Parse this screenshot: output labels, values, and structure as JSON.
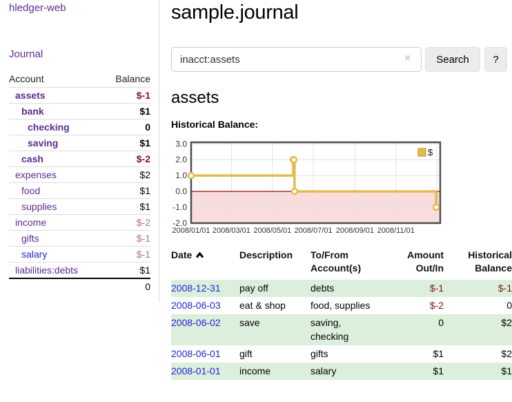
{
  "app": {
    "title": "hledger-web",
    "nav": {
      "journal": "Journal"
    }
  },
  "colors": {
    "accent_purple": "#5b2d91",
    "link_blue": "#2222dd",
    "negative_dark": "#801515",
    "negative_soft": "#b5716f",
    "row_green": "#dcefdc",
    "chart_gold": "#e3bc4a",
    "chart_negative_bg": "#f9dcdc",
    "zero_line_red": "#9b0000"
  },
  "sidebar": {
    "header": {
      "account": "Account",
      "balance": "Balance"
    },
    "accounts": [
      {
        "name": "assets",
        "balance": "$-1"
      },
      {
        "name": "bank",
        "balance": "$1"
      },
      {
        "name": "checking",
        "balance": "0"
      },
      {
        "name": "saving",
        "balance": "$1"
      },
      {
        "name": "cash",
        "balance": "$-2"
      },
      {
        "name": "expenses",
        "balance": "$2"
      },
      {
        "name": "food",
        "balance": "$1"
      },
      {
        "name": "supplies",
        "balance": "$1"
      },
      {
        "name": "income",
        "balance": "$-2"
      },
      {
        "name": "gifts",
        "balance": "$-1"
      },
      {
        "name": "salary",
        "balance": "$-1"
      },
      {
        "name": "liabilities:debts",
        "balance": "$1"
      }
    ],
    "total": "0"
  },
  "main": {
    "title": "sample.journal",
    "search": {
      "value": "inacct:assets",
      "clear_icon": "×",
      "search_button": "Search",
      "help_button": "?"
    },
    "account_heading": "assets",
    "chart_title": "Historical Balance:"
  },
  "chart_data": {
    "type": "line",
    "step": true,
    "title": "Historical Balance:",
    "series": [
      {
        "name": "$",
        "points": [
          [
            "2008-01-01",
            1
          ],
          [
            "2008-06-01",
            2
          ],
          [
            "2008-06-02",
            2
          ],
          [
            "2008-06-03",
            0
          ],
          [
            "2008-12-31",
            -1
          ]
        ]
      }
    ],
    "x_ticks": [
      "2008/01/01",
      "2008/03/01",
      "2008/05/01",
      "2008/07/01",
      "2008/09/01",
      "2008/11/01"
    ],
    "x_grid_extra": [
      "2009/01/01"
    ],
    "y_ticks": [
      3.0,
      2.0,
      1.0,
      0.0,
      -1.0,
      -2.0
    ],
    "ylim": [
      -2.0,
      3.1
    ],
    "xlim": [
      "2008-01-01",
      "2009-01-06"
    ],
    "grid": true,
    "legend": {
      "label": "$",
      "position": "top-right"
    },
    "line_color": "#e3bc4a",
    "negative_region_color": "#f9dcdc"
  },
  "register": {
    "headers": {
      "date": "Date",
      "description": "Description",
      "account": "To/From Account(s)",
      "amount": "Amount Out/In",
      "balance": "Historical Balance"
    },
    "rows": [
      {
        "date": "2008-12-31",
        "description": "pay off",
        "account": "debts",
        "amount": "$-1",
        "balance": "$-1"
      },
      {
        "date": "2008-06-03",
        "description": "eat & shop",
        "account": "food, supplies",
        "amount": "$-2",
        "balance": "0"
      },
      {
        "date": "2008-06-02",
        "description": "save",
        "account": "saving,\nchecking",
        "amount": "0",
        "balance": "$2"
      },
      {
        "date": "2008-06-01",
        "description": "gift",
        "account": "gifts",
        "amount": "$1",
        "balance": "$2"
      },
      {
        "date": "2008-01-01",
        "description": "income",
        "account": "salary",
        "amount": "$1",
        "balance": "$1"
      }
    ]
  }
}
